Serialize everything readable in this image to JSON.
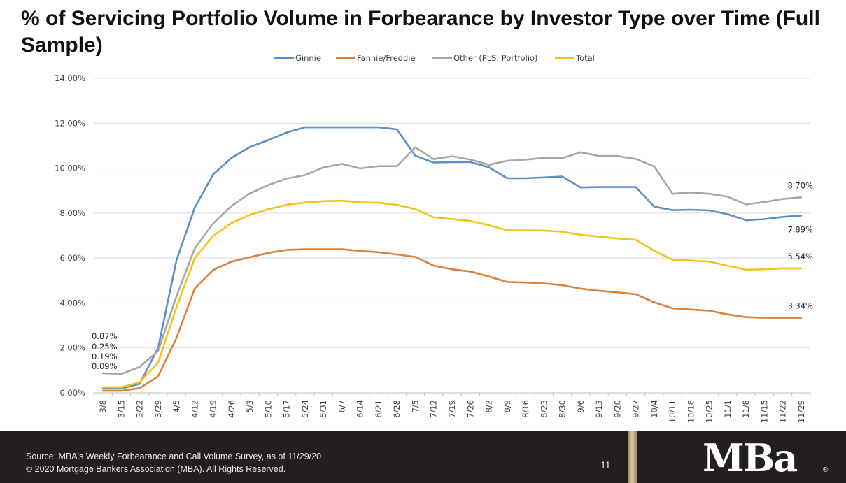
{
  "title": "% of Servicing Portfolio Volume in Forbearance by Investor Type over Time (Full Sample)",
  "footer": {
    "source_line1": "Source: MBA's Weekly Forbearance and Call Volume Survey, as of 11/29/20",
    "source_line2": "© 2020 Mortgage Bankers Association (MBA). All Rights Reserved.",
    "page_number": "11",
    "logo_text": "MBa",
    "logo_reg": "®"
  },
  "chart_data": {
    "type": "line",
    "title": "% of Servicing Portfolio Volume in Forbearance by Investor Type over Time (Full Sample)",
    "xlabel": "",
    "ylabel": "",
    "ylim": [
      0,
      14
    ],
    "y_ticks": [
      "0.00%",
      "2.00%",
      "4.00%",
      "6.00%",
      "8.00%",
      "10.00%",
      "12.00%",
      "14.00%"
    ],
    "grid": true,
    "legend_position": "top",
    "categories": [
      "3/8",
      "3/15",
      "3/22",
      "3/29",
      "4/5",
      "4/12",
      "4/19",
      "4/26",
      "5/3",
      "5/10",
      "5/17",
      "5/24",
      "5/31",
      "6/7",
      "6/14",
      "6/21",
      "6/28",
      "7/5",
      "7/12",
      "7/19",
      "7/26",
      "8/2",
      "8/9",
      "8/16",
      "8/23",
      "8/30",
      "9/6",
      "9/13",
      "9/20",
      "9/27",
      "10/4",
      "10/11",
      "10/18",
      "10/25",
      "11/1",
      "11/8",
      "11/15",
      "11/22",
      "11/29"
    ],
    "series": [
      {
        "name": "Ginnie",
        "color": "#5b8fc6",
        "values": [
          0.19,
          0.19,
          0.4,
          2.0,
          5.9,
          8.25,
          9.73,
          10.46,
          10.94,
          11.25,
          11.59,
          11.82,
          11.82,
          11.82,
          11.82,
          11.82,
          11.73,
          10.55,
          10.25,
          10.27,
          10.27,
          10.04,
          9.55,
          9.55,
          9.59,
          9.63,
          9.14,
          9.16,
          9.16,
          9.16,
          8.29,
          8.13,
          8.15,
          8.12,
          7.95,
          7.68,
          7.73,
          7.83,
          7.89
        ]
      },
      {
        "name": "Fannie/Freddie",
        "color": "#d9823d",
        "values": [
          0.09,
          0.09,
          0.21,
          0.73,
          2.45,
          4.65,
          5.47,
          5.84,
          6.04,
          6.23,
          6.36,
          6.39,
          6.39,
          6.39,
          6.32,
          6.26,
          6.16,
          6.05,
          5.66,
          5.5,
          5.4,
          5.18,
          4.93,
          4.91,
          4.87,
          4.79,
          4.64,
          4.54,
          4.47,
          4.39,
          4.03,
          3.76,
          3.71,
          3.66,
          3.49,
          3.37,
          3.34,
          3.34,
          3.34
        ]
      },
      {
        "name": "Other (PLS, Portfolio)",
        "color": "#a6a6a6",
        "values": [
          0.87,
          0.84,
          1.15,
          1.86,
          4.3,
          6.44,
          7.54,
          8.32,
          8.88,
          9.25,
          9.54,
          9.69,
          10.03,
          10.19,
          9.99,
          10.09,
          10.09,
          10.93,
          10.4,
          10.53,
          10.38,
          10.15,
          10.33,
          10.38,
          10.46,
          10.44,
          10.71,
          10.54,
          10.54,
          10.41,
          10.08,
          8.86,
          8.92,
          8.86,
          8.73,
          8.39,
          8.49,
          8.63,
          8.7
        ]
      },
      {
        "name": "Total",
        "color": "#f0c419",
        "values": [
          0.25,
          0.25,
          0.47,
          1.34,
          3.81,
          6.0,
          6.99,
          7.56,
          7.92,
          8.17,
          8.37,
          8.47,
          8.53,
          8.55,
          8.48,
          8.46,
          8.37,
          8.18,
          7.81,
          7.73,
          7.65,
          7.46,
          7.23,
          7.23,
          7.22,
          7.17,
          7.03,
          6.95,
          6.87,
          6.81,
          6.33,
          5.92,
          5.89,
          5.84,
          5.66,
          5.48,
          5.5,
          5.54,
          5.54
        ]
      }
    ],
    "annotations": {
      "start_labels": [
        "0.87%",
        "0.25%",
        "0.19%",
        "0.09%"
      ],
      "end_labels": [
        {
          "text": "8.70%",
          "series": "Other (PLS, Portfolio)"
        },
        {
          "text": "7.89%",
          "series": "Ginnie"
        },
        {
          "text": "5.54%",
          "series": "Total"
        },
        {
          "text": "3.34%",
          "series": "Fannie/Freddie"
        }
      ]
    }
  }
}
